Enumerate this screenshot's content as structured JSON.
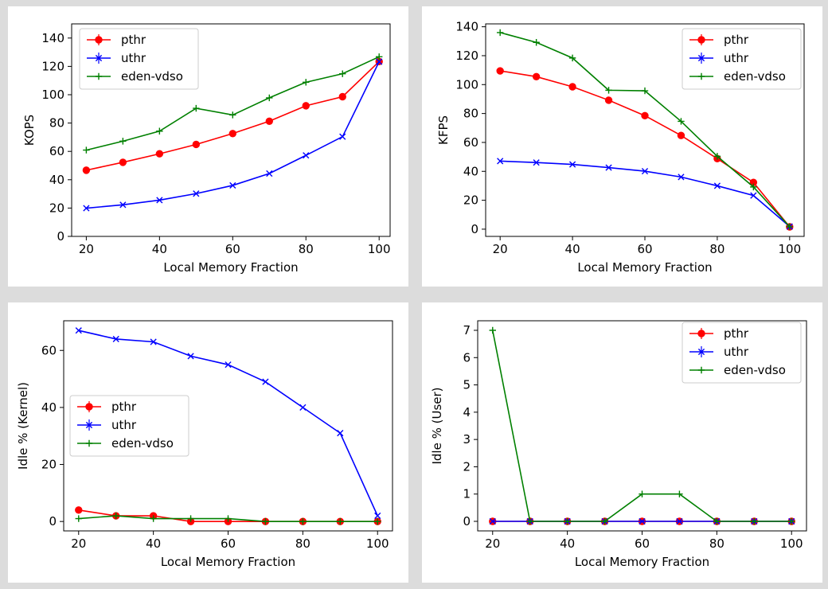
{
  "chart_data": [
    {
      "id": "kops",
      "type": "line",
      "xlabel": "Local Memory Fraction",
      "ylabel": "KOPS",
      "xlim": [
        16,
        103
      ],
      "ylim": [
        0,
        150
      ],
      "xticks": [
        20,
        40,
        60,
        80,
        100
      ],
      "yticks": [
        0,
        20,
        40,
        60,
        80,
        100,
        120,
        140
      ],
      "legend_position": "upper left",
      "x": [
        20,
        30,
        40,
        50,
        60,
        70,
        80,
        90,
        100
      ],
      "series": [
        {
          "name": "pthr",
          "color": "#ff0000",
          "marker": "o",
          "values": [
            46.7,
            52.3,
            58.3,
            64.9,
            72.6,
            81.3,
            92.2,
            98.6,
            123.4
          ]
        },
        {
          "name": "uthr",
          "color": "#0000ff",
          "marker": "x",
          "values": [
            19.9,
            22.3,
            25.6,
            30.2,
            36.0,
            44.4,
            57.2,
            70.4,
            123.3
          ]
        },
        {
          "name": "eden-vdso",
          "color": "#008000",
          "marker": "+",
          "values": [
            60.9,
            67.2,
            74.3,
            90.4,
            85.7,
            97.8,
            108.8,
            114.8,
            126.8
          ]
        }
      ]
    },
    {
      "id": "kfps",
      "type": "line",
      "xlabel": "Local Memory Fraction",
      "ylabel": "KFPS",
      "xlim": [
        16,
        104
      ],
      "ylim": [
        -5,
        142
      ],
      "xticks": [
        20,
        40,
        60,
        80,
        100
      ],
      "yticks": [
        0,
        20,
        40,
        60,
        80,
        100,
        120,
        140
      ],
      "legend_position": "upper right",
      "x": [
        20,
        30,
        40,
        50,
        60,
        70,
        80,
        90,
        100
      ],
      "series": [
        {
          "name": "pthr",
          "color": "#ff0000",
          "marker": "o",
          "values": [
            109.5,
            105.5,
            98.5,
            89.2,
            78.5,
            64.8,
            48.8,
            32.3,
            1.6
          ]
        },
        {
          "name": "uthr",
          "color": "#0000ff",
          "marker": "x",
          "values": [
            47.1,
            46.1,
            44.8,
            42.6,
            40.1,
            36.1,
            30.0,
            23.3,
            1.8
          ]
        },
        {
          "name": "eden-vdso",
          "color": "#008000",
          "marker": "+",
          "values": [
            136.0,
            129.2,
            118.4,
            96.1,
            95.7,
            74.6,
            50.4,
            29.2,
            1.7
          ]
        }
      ]
    },
    {
      "id": "idle-kernel",
      "type": "line",
      "xlabel": "Local Memory Fraction",
      "ylabel": "Idle % (Kernel)",
      "xlim": [
        16,
        104
      ],
      "ylim": [
        -3.3,
        70.4
      ],
      "xticks": [
        20,
        40,
        60,
        80,
        100
      ],
      "yticks": [
        0,
        20,
        40,
        60
      ],
      "legend_position": "center left",
      "x": [
        20,
        30,
        40,
        50,
        60,
        70,
        80,
        90,
        100
      ],
      "series": [
        {
          "name": "pthr",
          "color": "#ff0000",
          "marker": "o",
          "values": [
            4,
            2,
            2,
            0,
            0,
            0,
            0,
            0,
            0
          ]
        },
        {
          "name": "uthr",
          "color": "#0000ff",
          "marker": "x",
          "values": [
            67,
            64,
            63,
            58,
            55,
            49,
            40,
            31,
            2
          ]
        },
        {
          "name": "eden-vdso",
          "color": "#008000",
          "marker": "+",
          "values": [
            1,
            2,
            1,
            1,
            1,
            0,
            0,
            0,
            0
          ]
        }
      ]
    },
    {
      "id": "idle-user",
      "type": "line",
      "xlabel": "Local Memory Fraction",
      "ylabel": "Idle % (User)",
      "xlim": [
        16,
        104
      ],
      "ylim": [
        -0.35,
        7.35
      ],
      "xticks": [
        20,
        40,
        60,
        80,
        100
      ],
      "yticks": [
        0,
        1,
        2,
        3,
        4,
        5,
        6,
        7
      ],
      "legend_position": "upper right",
      "x": [
        20,
        30,
        40,
        50,
        60,
        70,
        80,
        90,
        100
      ],
      "series": [
        {
          "name": "pthr",
          "color": "#ff0000",
          "marker": "o",
          "values": [
            0,
            0,
            0,
            0,
            0,
            0,
            0,
            0,
            0
          ]
        },
        {
          "name": "uthr",
          "color": "#0000ff",
          "marker": "x",
          "values": [
            0,
            0,
            0,
            0,
            0,
            0,
            0,
            0,
            0
          ]
        },
        {
          "name": "eden-vdso",
          "color": "#008000",
          "marker": "+",
          "values": [
            7,
            0,
            0,
            0,
            1,
            1,
            0,
            0,
            0
          ]
        }
      ]
    }
  ]
}
